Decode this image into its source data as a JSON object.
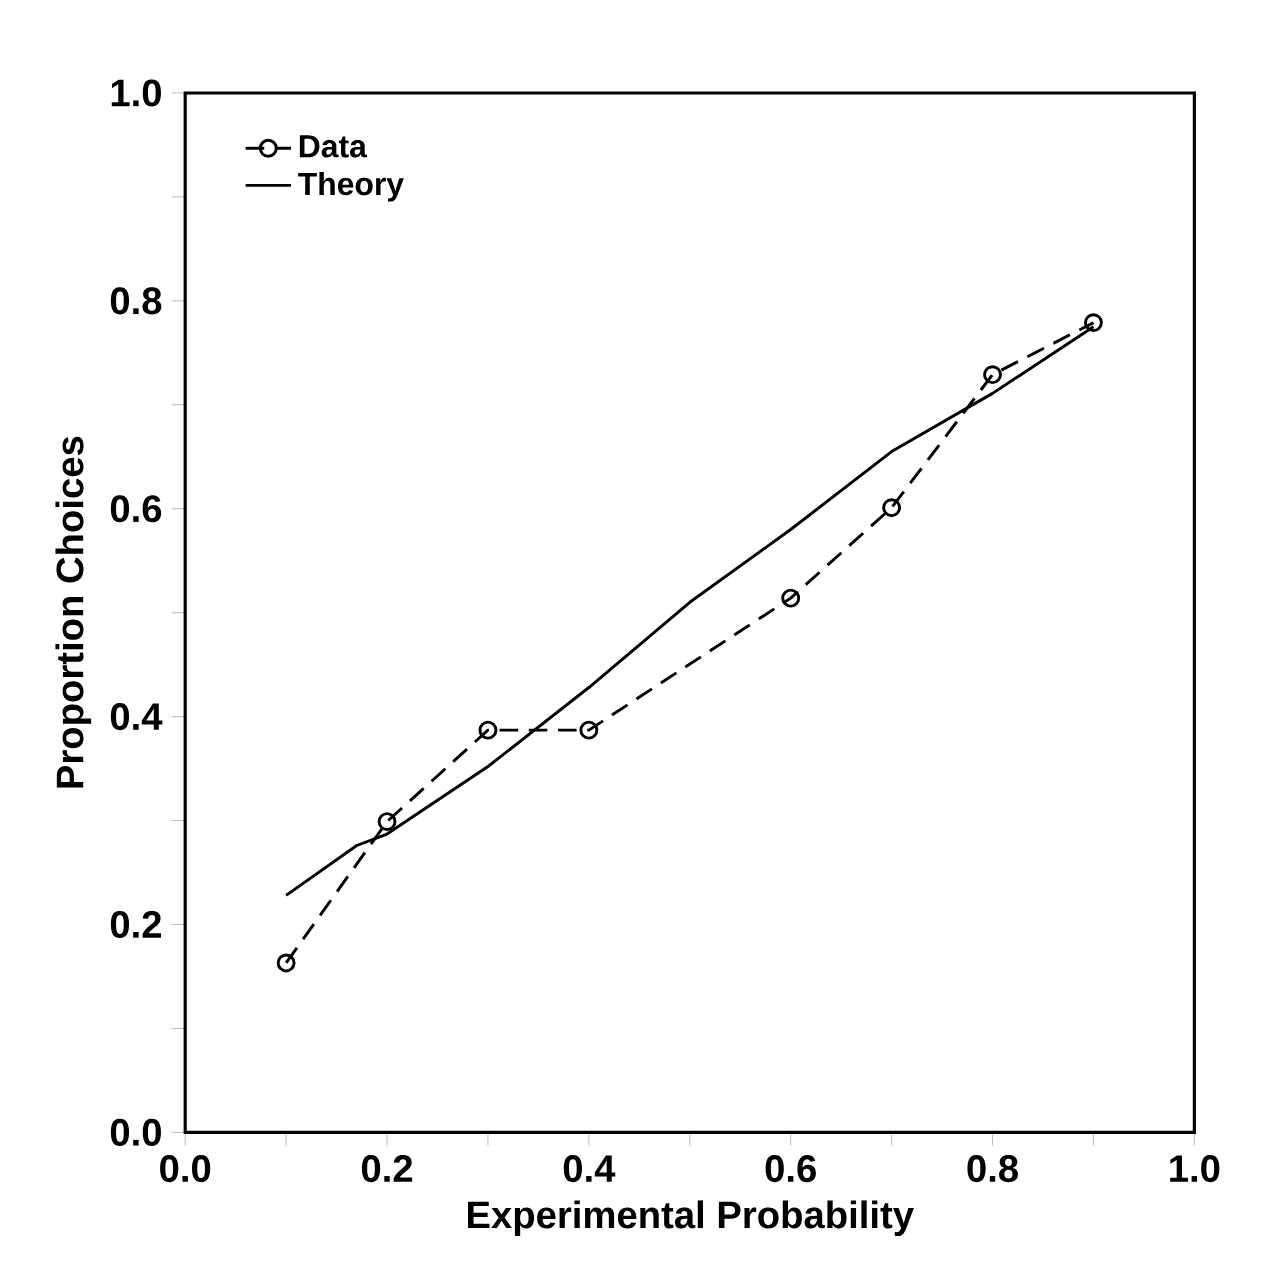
{
  "chart_data": {
    "type": "line",
    "xlabel": "Experimental Probability",
    "ylabel": "Proportion Choices",
    "xlim": [
      0,
      1
    ],
    "ylim": [
      0,
      1
    ],
    "xticks": [
      {
        "value": 0,
        "label": "0.0"
      },
      {
        "value": 0.1,
        "label": null
      },
      {
        "value": 0.2,
        "label": "0.2"
      },
      {
        "value": 0.3,
        "label": null
      },
      {
        "value": 0.4,
        "label": "0.4"
      },
      {
        "value": 0.5,
        "label": null
      },
      {
        "value": 0.6,
        "label": "0.6"
      },
      {
        "value": 0.7,
        "label": null
      },
      {
        "value": 0.8,
        "label": "0.8"
      },
      {
        "value": 0.9,
        "label": null
      },
      {
        "value": 1,
        "label": "1.0"
      }
    ],
    "yticks": [
      {
        "value": 0,
        "label": "0.0"
      },
      {
        "value": 0.1,
        "label": null
      },
      {
        "value": 0.2,
        "label": "0.2"
      },
      {
        "value": 0.3,
        "label": null
      },
      {
        "value": 0.4,
        "label": "0.4"
      },
      {
        "value": 0.5,
        "label": null
      },
      {
        "value": 0.6,
        "label": "0.6"
      },
      {
        "value": 0.7,
        "label": null
      },
      {
        "value": 0.8,
        "label": "0.8"
      },
      {
        "value": 0.9,
        "label": null
      },
      {
        "value": 1,
        "label": "1.0"
      }
    ],
    "legend": "top left",
    "grid": false,
    "series": [
      {
        "name": "Data",
        "color": "#000000",
        "marker": "circle",
        "line_style": "dashed",
        "x": [
          0.1,
          0.2,
          0.3,
          0.4,
          0.6,
          0.7,
          0.8,
          0.9
        ],
        "values": [
          0.163,
          0.299,
          0.387,
          0.387,
          0.514,
          0.601,
          0.729,
          0.779
        ]
      },
      {
        "name": "Theory",
        "color": "#000000",
        "marker": "none",
        "line_style": "solid",
        "x": [
          0.1,
          0.17,
          0.2,
          0.3,
          0.4,
          0.5,
          0.6,
          0.7,
          0.8,
          0.9
        ],
        "values": [
          0.228,
          0.276,
          0.287,
          0.352,
          0.428,
          0.51,
          0.58,
          0.655,
          0.711,
          0.775
        ]
      }
    ]
  }
}
